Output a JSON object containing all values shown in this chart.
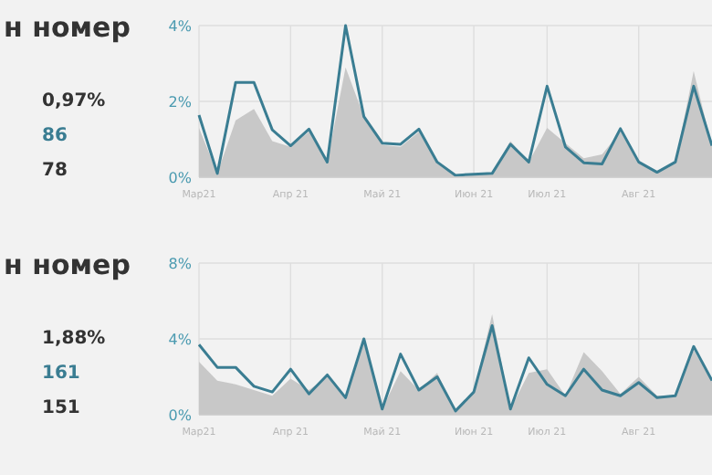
{
  "chart_data": [
    {
      "type": "line",
      "title": "н номер",
      "annotations": [
        "0,97%",
        "86",
        "78"
      ],
      "categories": [
        "Мар21",
        null,
        null,
        null,
        null,
        "Апр 21",
        null,
        null,
        null,
        null,
        "Май 21",
        null,
        null,
        null,
        null,
        "Июн 21",
        null,
        null,
        null,
        "Июл 21",
        null,
        null,
        null,
        null,
        "Авг 21",
        null,
        null,
        null,
        null
      ],
      "ylim": [
        0,
        4
      ],
      "yticks": [
        {
          "value": 0,
          "label": "0%"
        },
        {
          "value": 2,
          "label": "2%"
        },
        {
          "value": 4,
          "label": "4%"
        }
      ],
      "grid": true,
      "series": [
        {
          "type": "area",
          "color": "#c8c8c8",
          "values": [
            1.3,
            0.1,
            1.5,
            1.8,
            0.95,
            0.8,
            1.2,
            0.4,
            2.9,
            1.6,
            0.85,
            0.8,
            1.2,
            0.4,
            0.05,
            0.08,
            0.1,
            0.95,
            0.4,
            1.3,
            0.9,
            0.5,
            0.6,
            1.2,
            0.4,
            0.13,
            0.4,
            2.8,
            0.8
          ]
        },
        {
          "color": "#3a7d92",
          "values": [
            1.64,
            0.1,
            2.5,
            2.5,
            1.25,
            0.83,
            1.27,
            0.4,
            4.0,
            1.6,
            0.9,
            0.87,
            1.27,
            0.4,
            0.05,
            0.08,
            0.1,
            0.87,
            0.4,
            2.4,
            0.8,
            0.38,
            0.35,
            1.28,
            0.4,
            0.13,
            0.4,
            2.4,
            0.83
          ]
        }
      ]
    },
    {
      "type": "line",
      "title": "н номер",
      "annotations": [
        "1,88%",
        "161",
        "151"
      ],
      "categories": [
        "Мар21",
        null,
        null,
        null,
        null,
        "Апр 21",
        null,
        null,
        null,
        null,
        "Май 21",
        null,
        null,
        null,
        null,
        "Июн 21",
        null,
        null,
        null,
        "Июл 21",
        null,
        null,
        null,
        null,
        "Авг 21",
        null,
        null,
        null,
        null
      ],
      "ylim": [
        0,
        8
      ],
      "yticks": [
        {
          "value": 0,
          "label": "0%"
        },
        {
          "value": 4,
          "label": "4%"
        },
        {
          "value": 8,
          "label": "8%"
        }
      ],
      "grid": true,
      "series": [
        {
          "type": "area",
          "color": "#c8c8c8",
          "values": [
            2.8,
            1.8,
            1.6,
            1.3,
            1.0,
            1.9,
            1.3,
            2.0,
            0.9,
            3.9,
            0.3,
            2.3,
            1.3,
            2.2,
            0.2,
            1.2,
            5.3,
            0.3,
            2.2,
            2.4,
            1.0,
            3.3,
            2.3,
            1.1,
            2.0,
            1.0,
            1.0,
            3.4,
            1.8
          ]
        },
        {
          "color": "#3a7d92",
          "values": [
            3.7,
            2.5,
            2.5,
            1.5,
            1.2,
            2.4,
            1.1,
            2.1,
            0.9,
            4.0,
            0.3,
            3.2,
            1.3,
            2.0,
            0.2,
            1.2,
            4.7,
            0.3,
            3.0,
            1.6,
            1.0,
            2.4,
            1.3,
            1.0,
            1.7,
            0.9,
            1.0,
            3.6,
            1.8
          ]
        }
      ]
    }
  ]
}
